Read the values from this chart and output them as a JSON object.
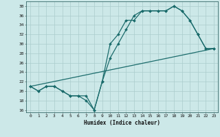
{
  "title": "",
  "xlabel": "Humidex (Indice chaleur)",
  "background_color": "#cce8e8",
  "grid_color": "#aacccc",
  "line_color": "#1a6b6b",
  "xlim": [
    -0.5,
    23.5
  ],
  "ylim": [
    15.5,
    39
  ],
  "yticks": [
    16,
    18,
    20,
    22,
    24,
    26,
    28,
    30,
    32,
    34,
    36,
    38
  ],
  "xticks": [
    0,
    1,
    2,
    3,
    4,
    5,
    6,
    7,
    8,
    9,
    10,
    11,
    12,
    13,
    14,
    15,
    16,
    17,
    18,
    19,
    20,
    21,
    22,
    23
  ],
  "line1_x": [
    0,
    1,
    2,
    3,
    4,
    5,
    6,
    7,
    8,
    9,
    10,
    11,
    12,
    13,
    14,
    15,
    16,
    17,
    18,
    19,
    20,
    21,
    22,
    23
  ],
  "line1_y": [
    21,
    20,
    21,
    21,
    20,
    19,
    19,
    18,
    16,
    22,
    30,
    32,
    35,
    35,
    37,
    37,
    37,
    37,
    38,
    37,
    35,
    32,
    29,
    29
  ],
  "line2_x": [
    0,
    1,
    2,
    3,
    4,
    5,
    6,
    7,
    8,
    9,
    10,
    11,
    12,
    13,
    14,
    15,
    16,
    17,
    18,
    19,
    20,
    21,
    22,
    23
  ],
  "line2_y": [
    21,
    20,
    21,
    21,
    20,
    19,
    19,
    19,
    16,
    22,
    27,
    30,
    33,
    36,
    37,
    37,
    37,
    37,
    38,
    37,
    35,
    32,
    29,
    29
  ],
  "line3_x": [
    0,
    23
  ],
  "line3_y": [
    21,
    29
  ],
  "marker": "D",
  "markersize": 2.0,
  "linewidth": 0.9
}
